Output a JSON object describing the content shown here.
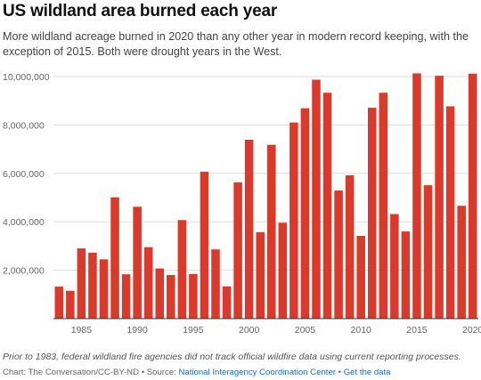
{
  "title": "US wildland area burned each year",
  "subtitle": "More wildland acreage burned in 2020 than any other year in modern record keeping, with the exception of 2015. Both were drought years in the West.",
  "footnote": "Prior to 1983, federal wildland fire agencies did not track official wildfire data using current reporting processes.",
  "source": {
    "prefix": "Chart: The Conversation/CC-BY-ND • Source: ",
    "source_link": "National Interagency Coordination Center",
    "separator": " • ",
    "data_link": "Get the data"
  },
  "colors": {
    "bar": "#d93a2b",
    "grid": "#dddddd",
    "axis": "#333333"
  },
  "chart_data": {
    "type": "bar",
    "categories": [
      "1983",
      "1984",
      "1985",
      "1986",
      "1987",
      "1988",
      "1989",
      "1990",
      "1991",
      "1992",
      "1993",
      "1994",
      "1995",
      "1996",
      "1997",
      "1998",
      "1999",
      "2000",
      "2001",
      "2002",
      "2003",
      "2004",
      "2005",
      "2006",
      "2007",
      "2008",
      "2009",
      "2010",
      "2011",
      "2012",
      "2013",
      "2014",
      "2015",
      "2016",
      "2017",
      "2018",
      "2019",
      "2020"
    ],
    "values": [
      1320000,
      1150000,
      2900000,
      2720000,
      2450000,
      5010000,
      1830000,
      4620000,
      2950000,
      2070000,
      1800000,
      4070000,
      1840000,
      6070000,
      2860000,
      1330000,
      5630000,
      7390000,
      3570000,
      7180000,
      3960000,
      8100000,
      8690000,
      9870000,
      9330000,
      5290000,
      5920000,
      3420000,
      8710000,
      9330000,
      4320000,
      3600000,
      10130000,
      5510000,
      10030000,
      8770000,
      4660000,
      10120000
    ],
    "title": "US wildland area burned each year",
    "xlabel": "",
    "ylabel": "",
    "ylim": [
      0,
      10000000
    ],
    "yticks": [
      "2,000,000",
      "4,000,000",
      "6,000,000",
      "8,000,000",
      "10,000,000"
    ],
    "ytick_values": [
      2000000,
      4000000,
      6000000,
      8000000,
      10000000
    ],
    "xticks": [
      "1985",
      "1990",
      "1995",
      "2000",
      "2005",
      "2010",
      "2015",
      "2020"
    ],
    "grid": true
  }
}
